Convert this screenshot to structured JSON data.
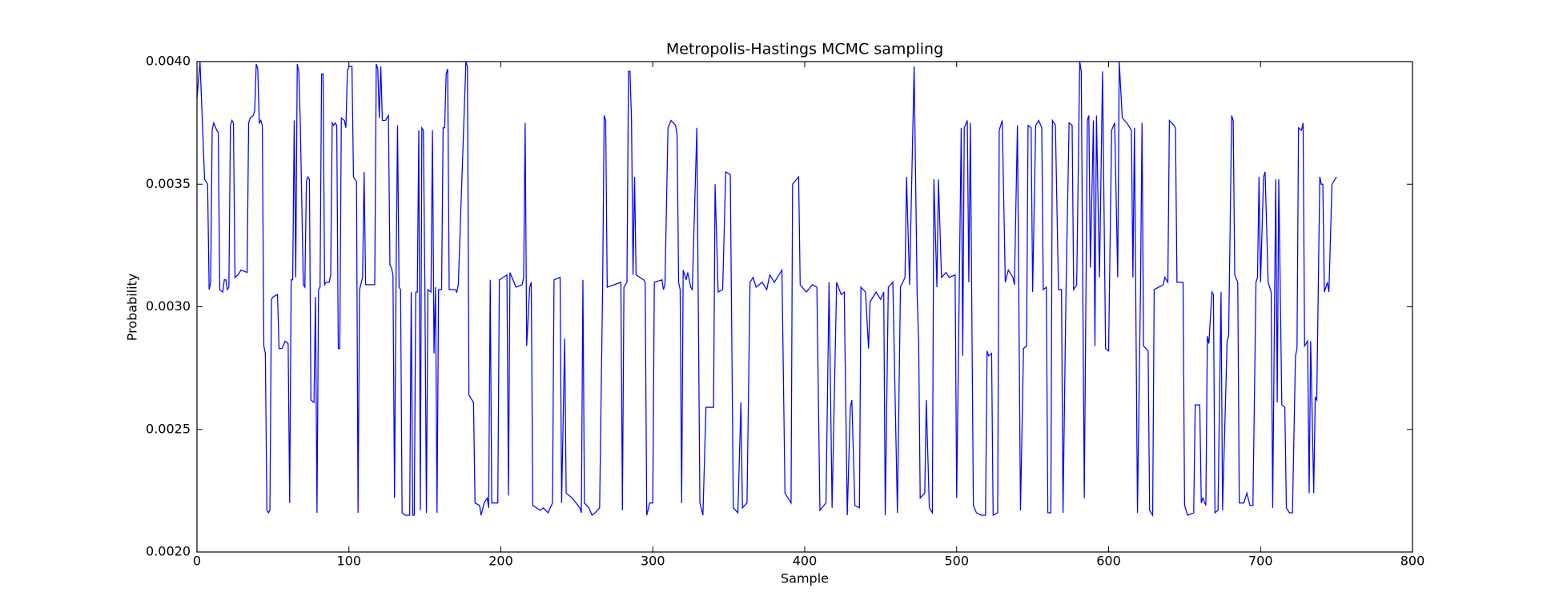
{
  "chart_data": {
    "type": "line",
    "title": "Metropolis-Hastings MCMC sampling",
    "x_label": "Sample",
    "y_label": "Probability",
    "color": "#0000ff",
    "xlim": [
      0,
      800
    ],
    "xticks": [
      0,
      100,
      200,
      300,
      400,
      500,
      600,
      700,
      800
    ],
    "ylim": [
      0.002,
      0.004
    ],
    "yticks": [
      {
        "value": 0.002,
        "label": "0.0020"
      },
      {
        "value": 0.0025,
        "label": "0.0025"
      },
      {
        "value": 0.003,
        "label": "0.0030"
      },
      {
        "value": 0.0035,
        "label": "0.0035"
      },
      {
        "value": 0.004,
        "label": "0.0040"
      }
    ],
    "x": [
      0,
      2,
      5,
      7,
      8,
      9,
      10,
      11,
      13,
      14,
      15,
      17,
      18,
      19,
      20,
      21,
      22,
      23,
      24,
      25,
      27,
      29,
      33,
      34,
      35,
      37,
      38,
      39,
      40,
      41,
      42,
      43,
      44,
      45,
      46,
      47,
      48,
      49,
      50,
      53,
      54,
      56,
      58,
      60,
      61,
      62,
      63,
      64,
      65,
      66,
      67,
      68,
      70,
      71,
      72,
      73,
      74,
      75,
      77,
      78,
      79,
      80,
      81,
      82,
      83,
      84,
      85,
      87,
      88,
      89,
      90,
      91,
      92,
      93,
      94,
      95,
      97,
      98,
      99,
      100,
      102,
      103,
      105,
      106,
      107,
      109,
      110,
      111,
      117,
      118,
      119,
      120,
      121,
      122,
      124,
      126,
      127,
      128,
      129,
      130,
      131,
      132,
      133,
      134,
      135,
      137,
      140,
      141,
      142,
      143,
      144,
      145,
      146,
      147,
      148,
      149,
      150,
      151,
      152,
      154,
      155,
      156,
      157,
      158,
      159,
      161,
      162,
      163,
      164,
      165,
      166,
      170,
      171,
      172,
      177,
      178,
      179,
      182,
      183,
      186,
      187,
      189,
      191,
      192,
      193,
      194,
      198,
      199,
      204,
      205,
      206,
      210,
      214,
      215,
      216,
      217,
      219,
      220,
      221,
      226,
      228,
      231,
      234,
      235,
      239,
      240,
      242,
      243,
      247,
      252,
      253,
      254,
      255,
      258,
      260,
      262,
      265,
      267,
      268,
      269,
      270,
      279,
      280,
      281,
      283,
      284,
      285,
      286,
      287,
      288,
      289,
      294,
      295,
      296,
      298,
      300,
      301,
      306,
      307,
      308,
      310,
      312,
      315,
      316,
      317,
      318,
      319,
      320,
      322,
      323,
      325,
      326,
      329,
      331,
      333,
      335,
      340,
      341,
      343,
      346,
      348,
      351,
      353,
      356,
      358,
      359,
      362,
      364,
      366,
      368,
      372,
      375,
      377,
      380,
      384,
      385,
      387,
      391,
      392,
      396,
      397,
      401,
      405,
      408,
      410,
      414,
      416,
      418,
      421,
      424,
      426,
      428,
      430,
      431,
      433,
      436,
      437,
      440,
      442,
      443,
      447,
      450,
      452,
      453,
      455,
      458,
      461,
      463,
      466,
      467,
      469,
      472,
      474,
      475,
      476,
      479,
      480,
      482,
      484,
      485,
      487,
      488,
      490,
      493,
      495,
      499,
      500,
      503,
      504,
      505,
      507,
      508,
      509,
      511,
      513,
      516,
      519,
      520,
      521,
      523,
      524,
      527,
      528,
      530,
      532,
      534,
      537,
      538,
      540,
      542,
      544,
      546,
      547,
      549,
      550,
      552,
      554,
      556,
      557,
      559,
      560,
      562,
      563,
      565,
      567,
      569,
      570,
      572,
      574,
      576,
      577,
      579,
      581,
      582,
      584,
      586,
      587,
      588,
      590,
      591,
      592,
      594,
      596,
      598,
      600,
      602,
      604,
      606,
      607,
      609,
      612,
      615,
      616,
      617,
      619,
      621,
      622,
      623,
      626,
      627,
      629,
      630,
      633,
      636,
      637,
      639,
      640,
      643,
      644,
      645,
      649,
      650,
      652,
      656,
      657,
      660,
      661,
      662,
      664,
      665,
      666,
      668,
      669,
      670,
      672,
      674,
      675,
      678,
      679,
      681,
      682,
      683,
      685,
      686,
      689,
      691,
      693,
      695,
      697,
      698,
      699,
      700,
      702,
      703,
      705,
      707,
      708,
      710,
      711,
      712,
      714,
      716,
      717,
      719,
      721,
      723,
      724,
      725,
      727,
      728,
      729,
      731,
      732,
      733,
      735,
      736,
      737,
      739,
      740,
      741,
      742,
      744,
      745,
      747,
      750
    ],
    "values": [
      0.00385,
      0.004,
      0.00352,
      0.0035,
      0.00307,
      0.0031,
      0.00372,
      0.00375,
      0.00372,
      0.00371,
      0.00307,
      0.00306,
      0.00311,
      0.00311,
      0.00307,
      0.00308,
      0.00374,
      0.00376,
      0.00375,
      0.00312,
      0.00313,
      0.00315,
      0.00314,
      0.00375,
      0.00377,
      0.00378,
      0.0038,
      0.00399,
      0.00397,
      0.00375,
      0.00376,
      0.00374,
      0.00284,
      0.00281,
      0.00217,
      0.00216,
      0.00217,
      0.00303,
      0.00304,
      0.00305,
      0.00283,
      0.00283,
      0.00286,
      0.00285,
      0.0022,
      0.00311,
      0.00311,
      0.00376,
      0.00312,
      0.00399,
      0.00396,
      0.00375,
      0.00309,
      0.00308,
      0.00351,
      0.00353,
      0.00352,
      0.00262,
      0.00261,
      0.00304,
      0.00216,
      0.00307,
      0.00308,
      0.00395,
      0.00395,
      0.00309,
      0.0031,
      0.0031,
      0.00313,
      0.00375,
      0.00374,
      0.00375,
      0.00374,
      0.00283,
      0.00283,
      0.00377,
      0.00376,
      0.00373,
      0.00396,
      0.00398,
      0.00398,
      0.00353,
      0.00351,
      0.00216,
      0.00307,
      0.00312,
      0.00355,
      0.00309,
      0.00309,
      0.00399,
      0.00397,
      0.00377,
      0.00398,
      0.00376,
      0.00376,
      0.00378,
      0.00317,
      0.00316,
      0.00313,
      0.00222,
      0.00309,
      0.00374,
      0.00308,
      0.00307,
      0.00216,
      0.00215,
      0.00215,
      0.00306,
      0.00215,
      0.00215,
      0.00306,
      0.00306,
      0.00372,
      0.00217,
      0.00373,
      0.00372,
      0.00308,
      0.00216,
      0.00307,
      0.00306,
      0.00372,
      0.00281,
      0.00308,
      0.00216,
      0.00307,
      0.00307,
      0.00373,
      0.00373,
      0.00395,
      0.00397,
      0.00307,
      0.00307,
      0.00306,
      0.00309,
      0.004,
      0.00398,
      0.00264,
      0.00261,
      0.0022,
      0.00219,
      0.00215,
      0.0022,
      0.00222,
      0.00218,
      0.00311,
      0.0022,
      0.0022,
      0.00311,
      0.00313,
      0.00223,
      0.00314,
      0.00308,
      0.00309,
      0.00312,
      0.00375,
      0.00284,
      0.00308,
      0.0031,
      0.00219,
      0.00217,
      0.00218,
      0.00216,
      0.0022,
      0.00311,
      0.00312,
      0.0022,
      0.00287,
      0.00224,
      0.00222,
      0.00218,
      0.00216,
      0.00311,
      0.0022,
      0.00218,
      0.00215,
      0.00216,
      0.00218,
      0.00309,
      0.00378,
      0.00376,
      0.00308,
      0.0031,
      0.00217,
      0.00308,
      0.0031,
      0.00396,
      0.00396,
      0.00376,
      0.00313,
      0.00353,
      0.00313,
      0.00311,
      0.0031,
      0.00215,
      0.0022,
      0.0022,
      0.0031,
      0.00311,
      0.00307,
      0.00309,
      0.00373,
      0.00376,
      0.00374,
      0.0037,
      0.0031,
      0.00307,
      0.0022,
      0.00315,
      0.00311,
      0.00314,
      0.00308,
      0.00307,
      0.00373,
      0.0022,
      0.00215,
      0.00259,
      0.00259,
      0.0035,
      0.00306,
      0.00307,
      0.00355,
      0.00354,
      0.00218,
      0.00216,
      0.00261,
      0.00218,
      0.0022,
      0.0031,
      0.00312,
      0.00308,
      0.0031,
      0.00307,
      0.00313,
      0.0031,
      0.00314,
      0.00315,
      0.00224,
      0.0022,
      0.0035,
      0.00353,
      0.00309,
      0.00306,
      0.00309,
      0.00308,
      0.00217,
      0.0022,
      0.0031,
      0.00218,
      0.0031,
      0.00305,
      0.00306,
      0.00215,
      0.00259,
      0.00262,
      0.00219,
      0.00218,
      0.00308,
      0.00306,
      0.00283,
      0.00302,
      0.00306,
      0.00303,
      0.00306,
      0.00215,
      0.00308,
      0.0031,
      0.00216,
      0.00308,
      0.00312,
      0.00353,
      0.00309,
      0.00398,
      0.00305,
      0.00285,
      0.00222,
      0.00224,
      0.00262,
      0.00218,
      0.00216,
      0.00352,
      0.00308,
      0.00352,
      0.00312,
      0.00314,
      0.00312,
      0.00313,
      0.00222,
      0.00373,
      0.0028,
      0.00373,
      0.00376,
      0.0031,
      0.00375,
      0.00219,
      0.00216,
      0.00215,
      0.00215,
      0.00282,
      0.0028,
      0.00281,
      0.00215,
      0.00216,
      0.00372,
      0.00376,
      0.0031,
      0.00315,
      0.00312,
      0.00309,
      0.00374,
      0.00217,
      0.00283,
      0.00284,
      0.00374,
      0.00373,
      0.00306,
      0.00374,
      0.00376,
      0.00373,
      0.00307,
      0.00308,
      0.00216,
      0.00216,
      0.00376,
      0.00374,
      0.00307,
      0.00307,
      0.00216,
      0.00308,
      0.00375,
      0.00374,
      0.00307,
      0.00309,
      0.004,
      0.00396,
      0.00222,
      0.00376,
      0.00378,
      0.00316,
      0.00376,
      0.00284,
      0.00378,
      0.00312,
      0.00396,
      0.00283,
      0.00282,
      0.00372,
      0.00375,
      0.00312,
      0.004,
      0.00377,
      0.00375,
      0.00372,
      0.00312,
      0.00373,
      0.00216,
      0.00308,
      0.00375,
      0.00284,
      0.00282,
      0.00217,
      0.00215,
      0.00307,
      0.00308,
      0.00309,
      0.00312,
      0.0031,
      0.00376,
      0.00374,
      0.00373,
      0.0031,
      0.0031,
      0.00219,
      0.00215,
      0.00216,
      0.0026,
      0.0026,
      0.0022,
      0.00222,
      0.00219,
      0.00288,
      0.00285,
      0.00306,
      0.00305,
      0.00216,
      0.00217,
      0.00306,
      0.00217,
      0.00286,
      0.00288,
      0.00378,
      0.00376,
      0.00313,
      0.0031,
      0.0022,
      0.0022,
      0.00224,
      0.00219,
      0.00219,
      0.0031,
      0.00312,
      0.00353,
      0.0031,
      0.00353,
      0.00355,
      0.0031,
      0.00306,
      0.00218,
      0.00352,
      0.00261,
      0.00352,
      0.0026,
      0.00259,
      0.00218,
      0.00216,
      0.00216,
      0.0028,
      0.00283,
      0.00373,
      0.00372,
      0.00375,
      0.00284,
      0.00286,
      0.00224,
      0.00286,
      0.00224,
      0.00263,
      0.00262,
      0.00353,
      0.0035,
      0.0035,
      0.00306,
      0.0031,
      0.00306,
      0.0035,
      0.00353
    ]
  }
}
